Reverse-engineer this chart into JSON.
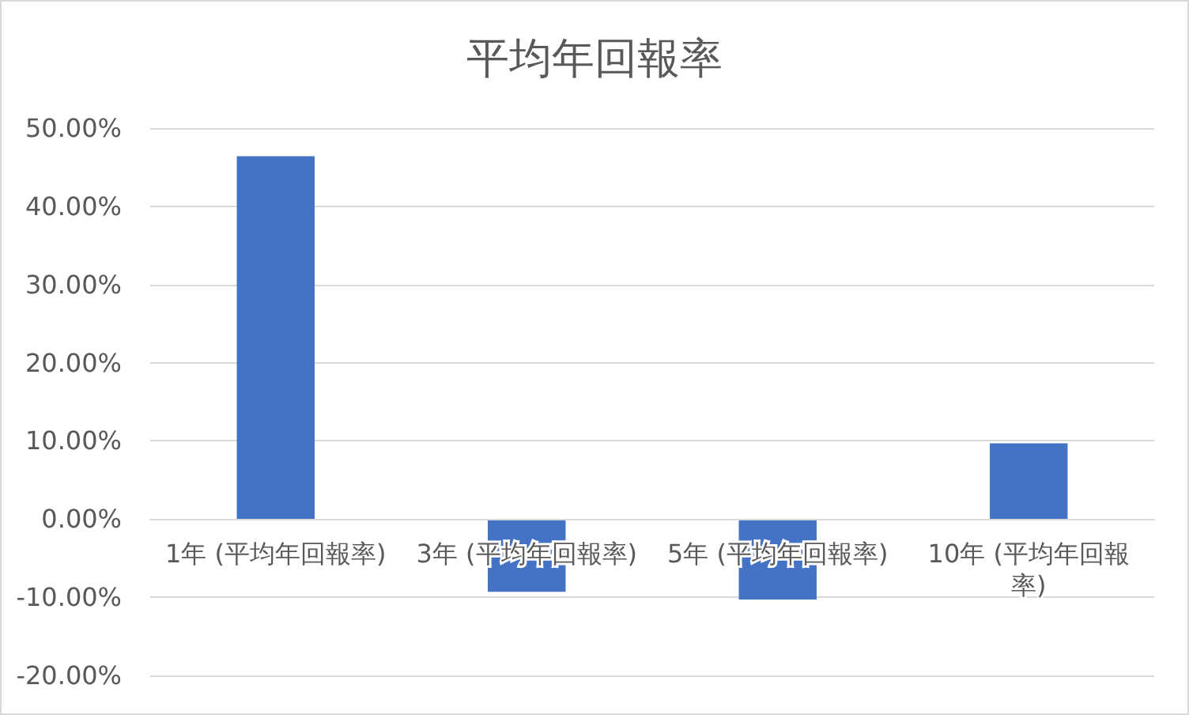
{
  "chart_data": {
    "type": "bar",
    "title": "平均年回報率",
    "categories": [
      "1年 (平均年回報率)",
      "3年 (平均年回報率)",
      "5年 (平均年回報率)",
      "10年 (平均年回報率)"
    ],
    "values": [
      46.4,
      -9.3,
      -10.3,
      9.7
    ],
    "color": "#4472c4",
    "ylim": [
      -20,
      50
    ],
    "yticks": [
      {
        "value": -20,
        "label": "-20.00%"
      },
      {
        "value": -10,
        "label": "-10.00%"
      },
      {
        "value": 0,
        "label": "0.00%"
      },
      {
        "value": 10,
        "label": "10.00%"
      },
      {
        "value": 20,
        "label": "20.00%"
      },
      {
        "value": 30,
        "label": "30.00%"
      },
      {
        "value": 40,
        "label": "40.00%"
      },
      {
        "value": 50,
        "label": "50.00%"
      }
    ],
    "grid": "y"
  }
}
